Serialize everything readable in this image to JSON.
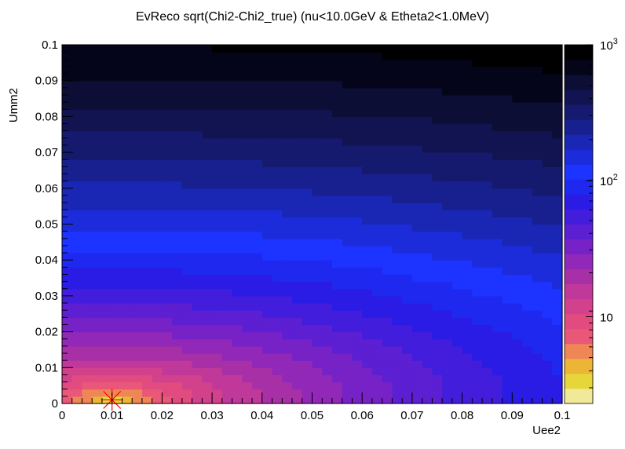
{
  "chart_data": {
    "type": "heatmap",
    "title": "EvReco sqrt(Chi2-Chi2_true) (nu<10.0GeV & Etheta2<1.0MeV)",
    "xlabel": "Uee2",
    "ylabel": "Umm2",
    "xlim": [
      0,
      0.1
    ],
    "ylim": [
      0,
      0.1
    ],
    "x_ticks": [
      "0",
      "0.01",
      "0.02",
      "0.03",
      "0.04",
      "0.05",
      "0.06",
      "0.07",
      "0.08",
      "0.09",
      "0.1"
    ],
    "y_ticks": [
      "0",
      "0.01",
      "0.02",
      "0.03",
      "0.04",
      "0.05",
      "0.06",
      "0.07",
      "0.08",
      "0.09",
      "0.1"
    ],
    "z_scale": "log",
    "zlim": [
      2.3,
      1000
    ],
    "z_ticks": [
      {
        "value": 10,
        "base": "10",
        "exp": ""
      },
      {
        "value": 100,
        "base": "10",
        "exp": "2"
      },
      {
        "value": 1000,
        "base": "10",
        "exp": "3"
      }
    ],
    "grid": false,
    "colorbar_position": "right",
    "colormap": [
      "#f1e89a",
      "#e6d63a",
      "#ecb535",
      "#ef8656",
      "#ea5879",
      "#e14b7f",
      "#d2418c",
      "#c0399a",
      "#a830a6",
      "#9128b8",
      "#7722c6",
      "#5d1fd2",
      "#431ddc",
      "#2a1ce4",
      "#1f28ef",
      "#1d33ff",
      "#1c2cda",
      "#1a26b4",
      "#18208f",
      "#161a6f",
      "#121452",
      "#0c0e36",
      "#05051a",
      "#000000"
    ],
    "grid_size": [
      50,
      50
    ],
    "model": {
      "description_of_values": "Each cell value z(Uee2, Umm2) for the 50x50 grid is generated by the plotting script from the marked best-fit point; the rendered colours follow the colour scale.",
      "best_fit": {
        "x": 0.01,
        "y": 0.001
      }
    },
    "marker": {
      "type": "star",
      "x": 0.01,
      "y": 0.001,
      "color": "#ff0000"
    }
  }
}
